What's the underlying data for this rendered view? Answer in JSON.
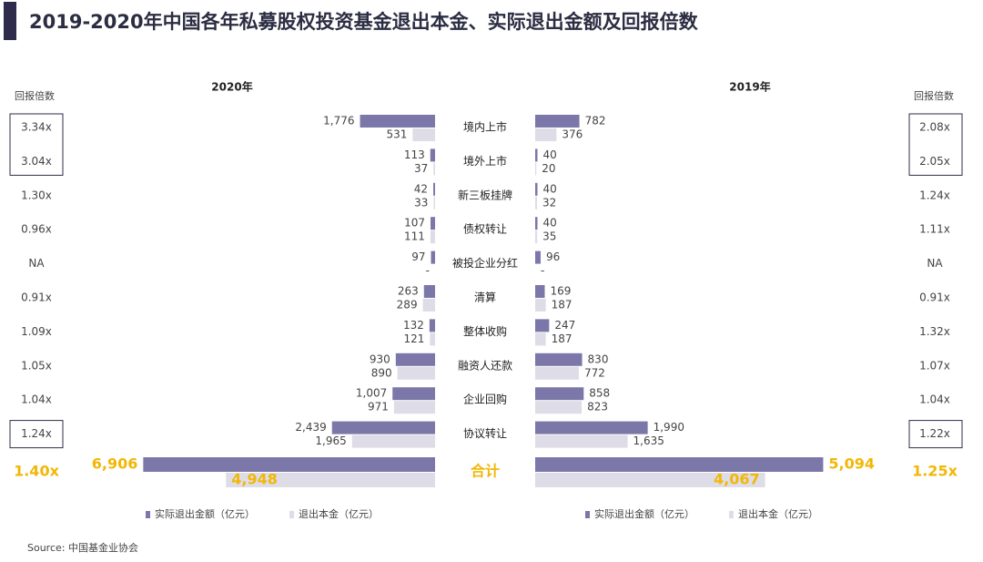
{
  "chart_data": {
    "type": "butterfly-bar",
    "title": "2019-2020年中国各年私募股权投资基金退出本金、实际退出金额及回报倍数",
    "categories": [
      "境内上市",
      "境外上市",
      "新三板挂牌",
      "债权转让",
      "被投企业分红",
      "清算",
      "整体收购",
      "融资人还款",
      "企业回购",
      "协议转让",
      "合计"
    ],
    "multiples_label": "回报倍数",
    "source": "Source: 中国基金业协会",
    "panels": [
      {
        "title": "2020年",
        "xlim": [
          0,
          7000
        ],
        "multiples": [
          "3.34x",
          "3.04x",
          "1.30x",
          "0.96x",
          "NA",
          "0.91x",
          "1.09x",
          "1.05x",
          "1.04x",
          "1.24x",
          "1.40x"
        ],
        "series": [
          {
            "name": "实际退出金额（亿元）",
            "color": "#7b77a8",
            "values": [
              1776,
              113,
              42,
              107,
              97,
              263,
              132,
              930,
              1007,
              2439,
              6906
            ],
            "value_labels": [
              "1,776",
              "113",
              "42",
              "107",
              "97",
              "263",
              "132",
              "930",
              "1,007",
              "2,439",
              "6,906"
            ]
          },
          {
            "name": "退出本金（亿元）",
            "color": "#dedde7",
            "values": [
              531,
              37,
              33,
              111,
              null,
              289,
              121,
              890,
              971,
              1965,
              4948
            ],
            "value_labels": [
              "531",
              "37",
              "33",
              "111",
              "-",
              "289",
              "121",
              "890",
              "971",
              "1,965",
              "4,948"
            ]
          }
        ]
      },
      {
        "title": "2019年",
        "xlim": [
          0,
          5200
        ],
        "multiples": [
          "2.08x",
          "2.05x",
          "1.24x",
          "1.11x",
          "NA",
          "0.91x",
          "1.32x",
          "1.07x",
          "1.04x",
          "1.22x",
          "1.25x"
        ],
        "series": [
          {
            "name": "实际退出金额（亿元）",
            "color": "#7b77a8",
            "values": [
              782,
              40,
              40,
              40,
              96,
              169,
              247,
              830,
              858,
              1990,
              5094
            ],
            "value_labels": [
              "782",
              "40",
              "40",
              "40",
              "96",
              "169",
              "247",
              "830",
              "858",
              "1,990",
              "5,094"
            ]
          },
          {
            "name": "退出本金（亿元）",
            "color": "#dedde7",
            "values": [
              376,
              20,
              32,
              35,
              null,
              187,
              187,
              772,
              823,
              1635,
              4067
            ],
            "value_labels": [
              "376",
              "20",
              "32",
              "35",
              "-",
              "187",
              "187",
              "772",
              "823",
              "1,635",
              "4,067"
            ]
          }
        ]
      }
    ]
  }
}
